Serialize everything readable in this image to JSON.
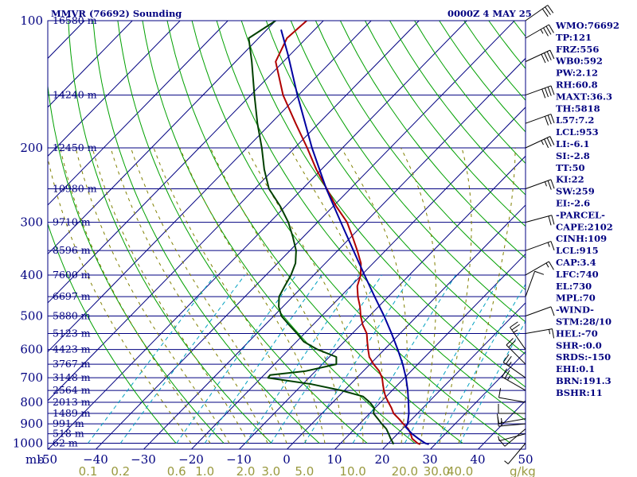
{
  "chart_data": {
    "type": "skew-t",
    "title": "MMVR (76692) Sounding",
    "valid_time": "0000Z  4 MAY 25",
    "pressure_axis": {
      "unit_label": "mb",
      "scale": "log",
      "range": [
        100,
        1000
      ],
      "ticks": [
        100,
        200,
        300,
        400,
        500,
        600,
        700,
        800,
        900,
        1000
      ]
    },
    "temperature_axis": {
      "unit": "°C",
      "range_at_bottom": [
        -50,
        50
      ],
      "ticks": [
        -50,
        -40,
        -30,
        -20,
        -10,
        0,
        10,
        20,
        30,
        40,
        50
      ],
      "tick_labels": [
        "-50",
        "−40",
        "−30",
        "−20",
        "−10",
        "0",
        "10",
        "20",
        "30",
        "40",
        "50"
      ]
    },
    "mixing_ratio_axis": {
      "unit_label": "g/kg",
      "ticks": [
        0.1,
        0.2,
        0.6,
        1.0,
        2.0,
        3.0,
        5.0,
        10.0,
        20.0,
        30.0,
        40.0
      ],
      "tick_labels": [
        "0.1",
        "0.2",
        "0.6",
        "1.0",
        "2.0",
        "3.0",
        "5.0",
        "10.0",
        "20.0",
        "30.0",
        "40.0"
      ]
    },
    "height_labels": [
      {
        "p": 100,
        "text": "16580 m"
      },
      {
        "p": 150,
        "text": "14240 m"
      },
      {
        "p": 200,
        "text": "12450 m"
      },
      {
        "p": 250,
        "text": "10980 m"
      },
      {
        "p": 300,
        "text": "9710 m"
      },
      {
        "p": 350,
        "text": "8596 m"
      },
      {
        "p": 400,
        "text": "7600 m"
      },
      {
        "p": 450,
        "text": "6697 m"
      },
      {
        "p": 500,
        "text": "5880 m"
      },
      {
        "p": 550,
        "text": "5123 m"
      },
      {
        "p": 600,
        "text": "4423 m"
      },
      {
        "p": 650,
        "text": "3767 m"
      },
      {
        "p": 700,
        "text": "3148 m"
      },
      {
        "p": 750,
        "text": "2564 m"
      },
      {
        "p": 800,
        "text": "2013 m"
      },
      {
        "p": 850,
        "text": "1489 m"
      },
      {
        "p": 900,
        "text": "991 m"
      },
      {
        "p": 950,
        "text": "518 m"
      },
      {
        "p": 1000,
        "text": "62 m"
      }
    ],
    "series": [
      {
        "name": "temperature",
        "color": "#b00000",
        "points": [
          [
            1006,
            28.2
          ],
          [
            1000,
            27.4
          ],
          [
            975,
            25.3
          ],
          [
            950,
            24.0
          ],
          [
            925,
            22.5
          ],
          [
            900,
            20.4
          ],
          [
            875,
            18.4
          ],
          [
            850,
            16.2
          ],
          [
            825,
            14.6
          ],
          [
            800,
            12.8
          ],
          [
            775,
            11.0
          ],
          [
            750,
            9.4
          ],
          [
            725,
            7.9
          ],
          [
            700,
            6.4
          ],
          [
            675,
            4.4
          ],
          [
            650,
            1.8
          ],
          [
            625,
            -0.6
          ],
          [
            600,
            -2.4
          ],
          [
            575,
            -4.2
          ],
          [
            550,
            -6.0
          ],
          [
            525,
            -8.6
          ],
          [
            500,
            -10.9
          ],
          [
            475,
            -13.0
          ],
          [
            450,
            -15.5
          ],
          [
            425,
            -17.8
          ],
          [
            400,
            -19.4
          ],
          [
            375,
            -21.8
          ],
          [
            350,
            -25.2
          ],
          [
            325,
            -29.0
          ],
          [
            300,
            -33.2
          ],
          [
            275,
            -38.8
          ],
          [
            250,
            -44.4
          ],
          [
            225,
            -50.6
          ],
          [
            200,
            -57.0
          ],
          [
            175,
            -64.5
          ],
          [
            150,
            -73.0
          ],
          [
            125,
            -81.5
          ],
          [
            110,
            -84.0
          ],
          [
            100,
            -83.5
          ]
        ]
      },
      {
        "name": "dewpoint",
        "color": "#004000",
        "points": [
          [
            1006,
            22.5
          ],
          [
            1000,
            22.3
          ],
          [
            975,
            20.8
          ],
          [
            950,
            19.4
          ],
          [
            925,
            17.9
          ],
          [
            900,
            15.9
          ],
          [
            875,
            14.0
          ],
          [
            850,
            12.0
          ],
          [
            825,
            11.0
          ],
          [
            800,
            8.9
          ],
          [
            775,
            6.3
          ],
          [
            750,
            0.5
          ],
          [
            725,
            -7.0
          ],
          [
            700,
            -17.5
          ],
          [
            690,
            -17.6
          ],
          [
            675,
            -11.0
          ],
          [
            650,
            -6.0
          ],
          [
            625,
            -7.5
          ],
          [
            600,
            -13.0
          ],
          [
            575,
            -17.5
          ],
          [
            550,
            -20.6
          ],
          [
            525,
            -24.0
          ],
          [
            500,
            -27.5
          ],
          [
            475,
            -30.0
          ],
          [
            450,
            -32.0
          ],
          [
            425,
            -33.0
          ],
          [
            400,
            -34.0
          ],
          [
            375,
            -35.5
          ],
          [
            350,
            -38.0
          ],
          [
            325,
            -41.5
          ],
          [
            300,
            -45.5
          ],
          [
            275,
            -50.5
          ],
          [
            250,
            -56.5
          ],
          [
            225,
            -61.5
          ],
          [
            200,
            -66.5
          ],
          [
            175,
            -72.5
          ],
          [
            150,
            -79.0
          ],
          [
            125,
            -86.5
          ],
          [
            110,
            -92.0
          ],
          [
            100,
            -90.0
          ]
        ]
      },
      {
        "name": "parcel",
        "color": "#0000a0",
        "points": [
          [
            1006,
            30.0
          ],
          [
            1000,
            29.0
          ],
          [
            975,
            26.6
          ],
          [
            950,
            24.3
          ],
          [
            915,
            21.5
          ],
          [
            900,
            21.3
          ],
          [
            850,
            19.4
          ],
          [
            800,
            17.0
          ],
          [
            750,
            14.4
          ],
          [
            700,
            11.4
          ],
          [
            650,
            7.9
          ],
          [
            600,
            3.8
          ],
          [
            550,
            -0.8
          ],
          [
            500,
            -6.0
          ],
          [
            450,
            -12.0
          ],
          [
            400,
            -18.6
          ],
          [
            350,
            -26.0
          ],
          [
            300,
            -34.5
          ],
          [
            250,
            -44.5
          ],
          [
            200,
            -56.0
          ],
          [
            150,
            -70.0
          ],
          [
            120,
            -80.5
          ],
          [
            105,
            -87.0
          ]
        ]
      }
    ],
    "wind_barbs": [
      {
        "p": 1000,
        "dir": 40,
        "spd": 5
      },
      {
        "p": 950,
        "dir": 75,
        "spd": 5
      },
      {
        "p": 925,
        "dir": 50,
        "spd": 10
      },
      {
        "p": 900,
        "dir": 85,
        "spd": 15
      },
      {
        "p": 875,
        "dir": 80,
        "spd": 15
      },
      {
        "p": 850,
        "dir": 90,
        "spd": 10
      },
      {
        "p": 800,
        "dir": 100,
        "spd": 10
      },
      {
        "p": 750,
        "dir": 120,
        "spd": 25
      },
      {
        "p": 700,
        "dir": 125,
        "spd": 25
      },
      {
        "p": 650,
        "dir": 135,
        "spd": 20
      },
      {
        "p": 600,
        "dir": 145,
        "spd": 25
      },
      {
        "p": 550,
        "dir": 260,
        "spd": 15
      },
      {
        "p": 500,
        "dir": 250,
        "spd": 10
      },
      {
        "p": 450,
        "dir": 200,
        "spd": 10
      },
      {
        "p": 400,
        "dir": 240,
        "spd": 15
      },
      {
        "p": 350,
        "dir": 250,
        "spd": 15
      },
      {
        "p": 300,
        "dir": 255,
        "spd": 20
      },
      {
        "p": 250,
        "dir": 250,
        "spd": 25
      },
      {
        "p": 200,
        "dir": 245,
        "spd": 35
      },
      {
        "p": 175,
        "dir": 250,
        "spd": 30
      },
      {
        "p": 150,
        "dir": 250,
        "spd": 40
      },
      {
        "p": 125,
        "dir": 245,
        "spd": 40
      },
      {
        "p": 110,
        "dir": 240,
        "spd": 35
      },
      {
        "p": 100,
        "dir": 235,
        "spd": 30
      }
    ],
    "indices": [
      "WMO:76692",
      "TP:121",
      "FRZ:556",
      "WB0:592",
      "PW:2.12",
      "RH:60.8",
      "MAXT:36.3",
      "TH:5818",
      "L57:7.2",
      "LCL:953",
      "LI:-6.1",
      "SI:-2.8",
      "TT:50",
      "KI:22",
      "SW:259",
      "EI:-2.6",
      "-PARCEL-",
      "CAPE:2102",
      "CINH:109",
      "LCL:915",
      "CAP:3.4",
      "LFC:740",
      "EL:730",
      "MPL:70",
      "-WIND-",
      "STM:28/10",
      "HEL:-70",
      "SHR-:0.0",
      "SRDS:-150",
      "EHI:0.1",
      "BRN:191.3",
      "BSHR:11"
    ],
    "colors": {
      "background": "#ffffff",
      "isobars": "#000080",
      "isotherms": "#000080",
      "dry_adiabats": "#00a000",
      "moist_adiabats": "#808000",
      "mixing_ratio": "#00a0c0",
      "labels": "#000080",
      "mixing_labels": "#9a9a40"
    }
  }
}
